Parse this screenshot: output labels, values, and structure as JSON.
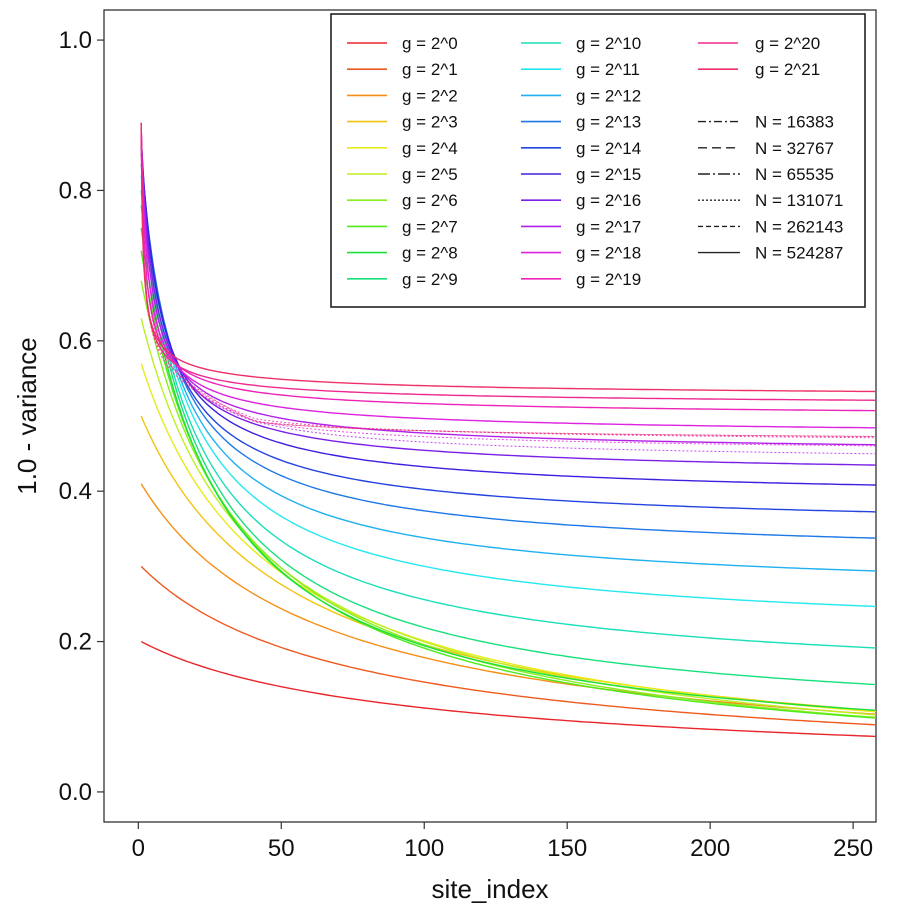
{
  "chart_data": {
    "type": "line",
    "title": "",
    "xlabel": "site_index",
    "ylabel": "1.0 - variance",
    "xlim": [
      -12,
      258
    ],
    "ylim": [
      -0.04,
      1.04
    ],
    "xticks": [
      0,
      50,
      100,
      150,
      200,
      250
    ],
    "yticks": [
      0.0,
      0.2,
      0.4,
      0.6,
      0.8,
      1.0
    ],
    "xtick_labels": [
      "0",
      "50",
      "100",
      "150",
      "200",
      "250"
    ],
    "ytick_labels": [
      "0.0",
      "0.2",
      "0.4",
      "0.6",
      "0.8",
      "1.0"
    ],
    "grid": false,
    "legend_position": "top-right",
    "series": [
      {
        "name": "g = 2^0",
        "color": "#e8262b",
        "start": 0.2,
        "end": 0.0
      },
      {
        "name": "g = 2^1",
        "color": "#ee5a1e",
        "start": 0.3,
        "end": 0.0
      },
      {
        "name": "g = 2^2",
        "color": "#f39018",
        "start": 0.41,
        "end": 0.0
      },
      {
        "name": "g = 2^3",
        "color": "#f2c40f",
        "start": 0.5,
        "end": 0.0
      },
      {
        "name": "g = 2^4",
        "color": "#e6ec1a",
        "start": 0.57,
        "end": 0.0
      },
      {
        "name": "g = 2^5",
        "color": "#bdef22",
        "start": 0.63,
        "end": 0.0
      },
      {
        "name": "g = 2^6",
        "color": "#88ee1e",
        "start": 0.68,
        "end": 0.003
      },
      {
        "name": "g = 2^7",
        "color": "#4eea1c",
        "start": 0.72,
        "end": 0.01
      },
      {
        "name": "g = 2^8",
        "color": "#1ee03a",
        "start": 0.75,
        "end": 0.03
      },
      {
        "name": "g = 2^9",
        "color": "#18e07c",
        "start": 0.78,
        "end": 0.075
      },
      {
        "name": "g = 2^10",
        "color": "#1adfb8",
        "start": 0.8,
        "end": 0.135
      },
      {
        "name": "g = 2^11",
        "color": "#25e8f0",
        "start": 0.82,
        "end": 0.2
      },
      {
        "name": "g = 2^12",
        "color": "#1fb0f0",
        "start": 0.835,
        "end": 0.255
      },
      {
        "name": "g = 2^13",
        "color": "#1e78e8",
        "start": 0.85,
        "end": 0.305
      },
      {
        "name": "g = 2^14",
        "color": "#2444e0",
        "start": 0.86,
        "end": 0.345
      },
      {
        "name": "g = 2^15",
        "color": "#3a20e0",
        "start": 0.87,
        "end": 0.385
      },
      {
        "name": "g = 2^16",
        "color": "#7a20e6",
        "start": 0.875,
        "end": 0.415
      },
      {
        "name": "g = 2^17",
        "color": "#b020e8",
        "start": 0.88,
        "end": 0.445
      },
      {
        "name": "g = 2^18",
        "color": "#dd22e0",
        "start": 0.885,
        "end": 0.47
      },
      {
        "name": "g = 2^19",
        "color": "#ee24b8",
        "start": 0.888,
        "end": 0.495
      },
      {
        "name": "g = 2^20",
        "color": "#ee2a90",
        "start": 0.89,
        "end": 0.51
      },
      {
        "name": "g = 2^21",
        "color": "#ee3068",
        "start": 0.89,
        "end": 0.52
      }
    ],
    "linetype_legend": [
      {
        "name": "N = 16383",
        "dash": "8 3 2 3"
      },
      {
        "name": "N = 32767",
        "dash": "9 5"
      },
      {
        "name": "N = 65535",
        "dash": "12 3 2 3"
      },
      {
        "name": "N = 131071",
        "dash": "2 2"
      },
      {
        "name": "N = 262143",
        "dash": "5 3"
      },
      {
        "name": "N = 524287",
        "dash": ""
      }
    ]
  }
}
